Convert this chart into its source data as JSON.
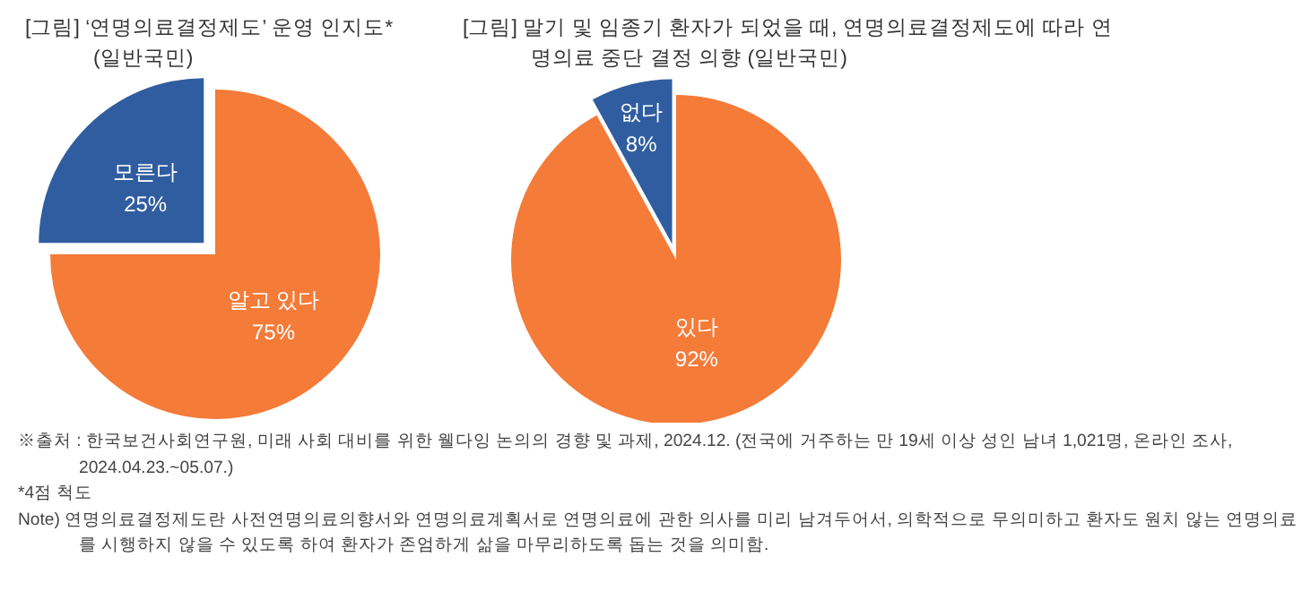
{
  "chart_data": [
    {
      "type": "pie",
      "title": "[그림] ‘연명의료결정제도’ 운영 인지도*",
      "subtitle": "(일반국민)",
      "categories": [
        "알고 있다",
        "모른다"
      ],
      "values": [
        75,
        25
      ],
      "value_labels": [
        "75%",
        "25%"
      ],
      "colors": [
        "#f47b38",
        "#2f5d9f"
      ],
      "annotations": [
        "※출처 : 한국보건사회연구원, 미래 사회 대비를 위한 웰다잉 논의의 경향 및 과제, 2024.12. (전국에 거주하는 만 19세 이상 성인 남녀 1,021명, 온라인 조사, 2024.04.23.~05.07.)",
        "*4점 척도",
        "Note) 연명의료결정제도란 사전연명의료의향서와 연명의료계획서로 연명의료에 관한 의사를 미리 남겨두어서, 의학적으로 무의미하고 환자도 원치 않는 연명의료를 시행하지 않을 수 있도록 하여 환자가 존엄하게 삶을 마무리하도록 돕는 것을 의미함."
      ]
    },
    {
      "type": "pie",
      "title": "[그림] 말기 및 임종기 환자가 되었을 때, 연명의료결정제도에 따라 연명의료 중단 결정 의향 (일반국민)",
      "categories": [
        "있다",
        "없다"
      ],
      "values": [
        92,
        8
      ],
      "value_labels": [
        "92%",
        "8%"
      ],
      "colors": [
        "#f47b38",
        "#2f5d9f"
      ]
    }
  ]
}
